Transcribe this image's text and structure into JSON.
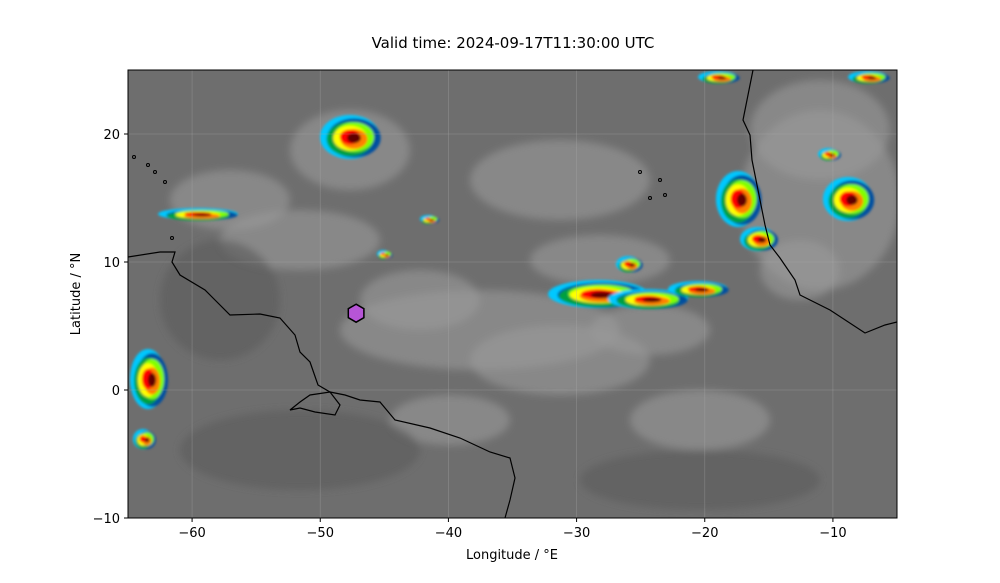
{
  "title": "Valid time: 2024-09-17T11:30:00 UTC",
  "xaxis": {
    "label": "Longitude / °E",
    "range": [
      -65,
      -5
    ],
    "ticks": [
      -60,
      -50,
      -40,
      -30,
      -20,
      -10
    ]
  },
  "yaxis": {
    "label": "Latitude / °N",
    "range": [
      -10,
      25
    ],
    "ticks": [
      -10,
      0,
      10,
      20
    ]
  },
  "grid": true,
  "background": "infrared satellite imagery (grayscale with color-enhanced cold cloud tops)",
  "marker": {
    "shape": "hexagon",
    "lon": -47.2,
    "lat": 6.0,
    "color": "#b655d6"
  },
  "colors": {
    "coastline": "#000000",
    "colorscale": [
      "#00c8ff",
      "#0050a0",
      "#00a040",
      "#80ff00",
      "#ffff00",
      "#ff8000",
      "#ff0000",
      "#600000"
    ]
  }
}
